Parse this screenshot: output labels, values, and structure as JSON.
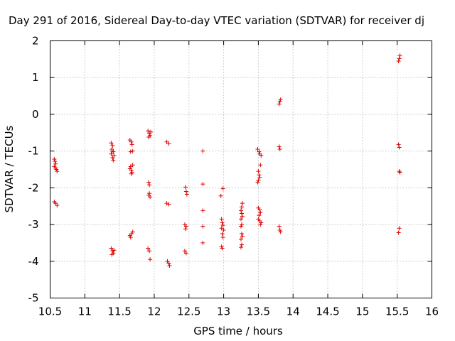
{
  "chart_data": {
    "type": "scatter",
    "title": "Day 291 of 2016, Sidereal Day-to-day VTEC variation (SDTVAR) for receiver dj",
    "xlabel": "GPS time / hours",
    "ylabel": "SDTVAR / TECUs",
    "xlim": [
      10.5,
      16
    ],
    "ylim": [
      -5,
      2
    ],
    "xticks": [
      "10.5",
      "11",
      "11.5",
      "12",
      "12.5",
      "13",
      "13.5",
      "14",
      "14.5",
      "15",
      "15.5",
      "16"
    ],
    "yticks": [
      "-5",
      "-4",
      "-3",
      "-2",
      "-1",
      "0",
      "1",
      "2"
    ],
    "grid": true,
    "marker": "+",
    "color": "#e00000",
    "series": [
      {
        "name": "SDTVAR",
        "points": [
          [
            10.56,
            -1.22
          ],
          [
            10.57,
            -1.28
          ],
          [
            10.58,
            -1.35
          ],
          [
            10.56,
            -1.42
          ],
          [
            10.59,
            -1.5
          ],
          [
            10.6,
            -1.55
          ],
          [
            10.58,
            -1.46
          ],
          [
            10.56,
            -2.38
          ],
          [
            10.58,
            -2.42
          ],
          [
            10.6,
            -2.48
          ],
          [
            11.38,
            -0.78
          ],
          [
            11.4,
            -0.85
          ],
          [
            11.39,
            -0.95
          ],
          [
            11.41,
            -1.02
          ],
          [
            11.38,
            -1.08
          ],
          [
            11.42,
            -1.12
          ],
          [
            11.4,
            -1.18
          ],
          [
            11.41,
            -1.25
          ],
          [
            11.39,
            -1.0
          ],
          [
            11.38,
            -3.65
          ],
          [
            11.4,
            -3.72
          ],
          [
            11.41,
            -3.78
          ],
          [
            11.39,
            -3.82
          ],
          [
            11.42,
            -3.7
          ],
          [
            11.65,
            -0.7
          ],
          [
            11.67,
            -0.75
          ],
          [
            11.68,
            -0.82
          ],
          [
            11.69,
            -1.0
          ],
          [
            11.66,
            -1.02
          ],
          [
            11.65,
            -1.48
          ],
          [
            11.67,
            -1.52
          ],
          [
            11.68,
            -1.58
          ],
          [
            11.66,
            -1.42
          ],
          [
            11.69,
            -1.38
          ],
          [
            11.67,
            -1.62
          ],
          [
            11.65,
            -3.3
          ],
          [
            11.67,
            -3.25
          ],
          [
            11.69,
            -3.2
          ],
          [
            11.66,
            -3.35
          ],
          [
            11.91,
            -0.45
          ],
          [
            11.93,
            -0.52
          ],
          [
            11.94,
            -0.58
          ],
          [
            11.92,
            -0.62
          ],
          [
            11.95,
            -0.48
          ],
          [
            11.92,
            -1.85
          ],
          [
            11.93,
            -1.92
          ],
          [
            11.92,
            -2.2
          ],
          [
            11.94,
            -2.25
          ],
          [
            11.93,
            -2.15
          ],
          [
            11.91,
            -3.65
          ],
          [
            11.93,
            -3.72
          ],
          [
            11.94,
            -3.95
          ],
          [
            12.18,
            -0.75
          ],
          [
            12.21,
            -0.8
          ],
          [
            12.18,
            -2.42
          ],
          [
            12.21,
            -2.45
          ],
          [
            12.19,
            -4.0
          ],
          [
            12.21,
            -4.05
          ],
          [
            12.22,
            -4.12
          ],
          [
            12.45,
            -1.98
          ],
          [
            12.46,
            -2.1
          ],
          [
            12.47,
            -2.18
          ],
          [
            12.44,
            -3.0
          ],
          [
            12.46,
            -3.05
          ],
          [
            12.45,
            -3.12
          ],
          [
            12.44,
            -3.72
          ],
          [
            12.46,
            -3.78
          ],
          [
            12.7,
            -1.0
          ],
          [
            12.7,
            -1.9
          ],
          [
            12.7,
            -2.62
          ],
          [
            12.7,
            -3.05
          ],
          [
            12.7,
            -3.5
          ],
          [
            12.96,
            -2.22
          ],
          [
            12.99,
            -2.02
          ],
          [
            12.97,
            -2.85
          ],
          [
            12.98,
            -2.95
          ],
          [
            12.99,
            -3.02
          ],
          [
            12.97,
            -3.1
          ],
          [
            13.0,
            -3.15
          ],
          [
            12.98,
            -3.25
          ],
          [
            12.99,
            -3.35
          ],
          [
            12.97,
            -3.6
          ],
          [
            12.98,
            -3.65
          ],
          [
            13.27,
            -2.42
          ],
          [
            13.26,
            -2.52
          ],
          [
            13.25,
            -2.62
          ],
          [
            13.26,
            -2.7
          ],
          [
            13.27,
            -2.78
          ],
          [
            13.25,
            -2.85
          ],
          [
            13.26,
            -3.0
          ],
          [
            13.25,
            -3.05
          ],
          [
            13.26,
            -3.25
          ],
          [
            13.27,
            -3.32
          ],
          [
            13.25,
            -3.4
          ],
          [
            13.26,
            -3.55
          ],
          [
            13.25,
            -3.62
          ],
          [
            13.49,
            -0.95
          ],
          [
            13.51,
            -1.02
          ],
          [
            13.52,
            -1.08
          ],
          [
            13.54,
            -1.12
          ],
          [
            13.53,
            -1.38
          ],
          [
            13.5,
            -1.55
          ],
          [
            13.51,
            -1.65
          ],
          [
            13.52,
            -1.72
          ],
          [
            13.5,
            -1.8
          ],
          [
            13.49,
            -1.85
          ],
          [
            13.5,
            -2.55
          ],
          [
            13.52,
            -2.6
          ],
          [
            13.53,
            -2.68
          ],
          [
            13.51,
            -2.75
          ],
          [
            13.5,
            -2.85
          ],
          [
            13.52,
            -2.9
          ],
          [
            13.54,
            -2.95
          ],
          [
            13.53,
            -3.0
          ],
          [
            13.8,
            0.28
          ],
          [
            13.81,
            0.35
          ],
          [
            13.82,
            0.4
          ],
          [
            13.8,
            -0.88
          ],
          [
            13.81,
            -0.95
          ],
          [
            13.8,
            -3.05
          ],
          [
            13.81,
            -3.15
          ],
          [
            13.82,
            -3.2
          ],
          [
            15.52,
            1.45
          ],
          [
            15.53,
            1.52
          ],
          [
            15.54,
            1.6
          ],
          [
            15.52,
            -0.82
          ],
          [
            15.53,
            -0.9
          ],
          [
            15.53,
            -1.55
          ],
          [
            15.54,
            -1.58
          ],
          [
            15.53,
            -3.1
          ],
          [
            15.52,
            -3.22
          ]
        ]
      }
    ]
  }
}
